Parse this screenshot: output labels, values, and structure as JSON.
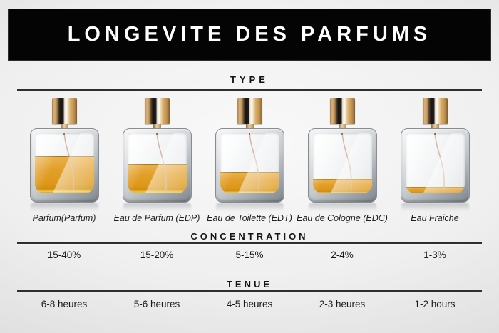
{
  "header": {
    "title": "LONGEVITE DES PARFUMS"
  },
  "sections": {
    "type": "TYPE",
    "concentration": "CONCENTRATION",
    "tenue": "TENUE"
  },
  "perfumes": [
    {
      "name": "Parfum(Parfum)",
      "concentration": "15-40%",
      "duration": "6-8 heures",
      "fill_percent": 60
    },
    {
      "name": "Eau de Parfum (EDP)",
      "concentration": "15-20%",
      "duration": "5-6 heures",
      "fill_percent": 47
    },
    {
      "name": "Eau de Toilette (EDT)",
      "concentration": "5-15%",
      "duration": "4-5 heures",
      "fill_percent": 34
    },
    {
      "name": "Eau de Cologne (EDC)",
      "concentration": "2-4%",
      "duration": "2-3 heures",
      "fill_percent": 22
    },
    {
      "name": "Eau Fraiche",
      "concentration": "1-3%",
      "duration": "1-2 hours",
      "fill_percent": 10
    }
  ],
  "colors": {
    "header_bg": "#040404",
    "header_text": "#ffffff",
    "liquid_gold": "#e2a02a",
    "cap_gold": "#c89a62",
    "rule": "#2e2e2e"
  }
}
